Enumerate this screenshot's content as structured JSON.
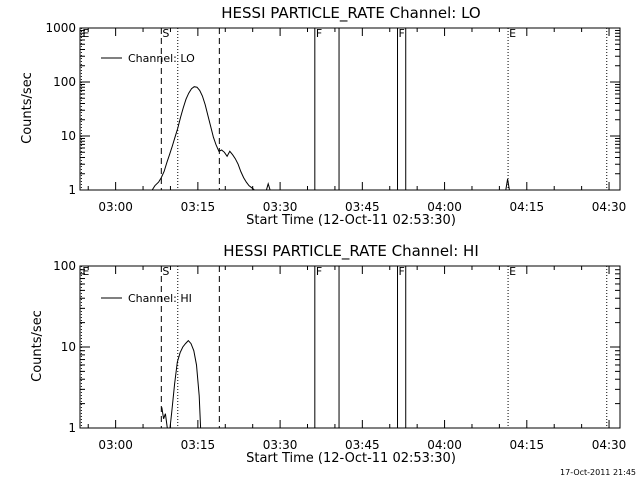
{
  "footer": {
    "timestamp": "17-Oct-2011 21:45"
  },
  "chart_data": [
    {
      "type": "line",
      "title": "HESSI PARTICLE_RATE Channel: LO",
      "xlabel": "Start Time (12-Oct-11 02:53:30)",
      "ylabel": "Counts/sec",
      "yscale": "log",
      "xlim": [
        "02:53:30",
        "04:32:00"
      ],
      "ylim": [
        1,
        1000
      ],
      "x_ticks": [
        "03:00",
        "03:15",
        "03:30",
        "03:45",
        "04:00",
        "04:15",
        "04:30"
      ],
      "y_ticks": [
        "1",
        "10",
        "100",
        "1000"
      ],
      "legend": {
        "position": "top-left",
        "entries": [
          "Channel: LO"
        ]
      },
      "markers": [
        {
          "label": "E",
          "time": "02:53:45",
          "style": "dotted"
        },
        {
          "label": "S",
          "time": "03:08:20",
          "style": "dashed"
        },
        {
          "label": "",
          "time": "03:11:20",
          "style": "dotted"
        },
        {
          "label": "",
          "time": "03:18:55",
          "style": "dashed"
        },
        {
          "label": "F",
          "time": "03:36:20",
          "style": "solid"
        },
        {
          "label": "",
          "time": "03:40:45",
          "style": "solid"
        },
        {
          "label": "F",
          "time": "03:51:25",
          "style": "solid"
        },
        {
          "label": "",
          "time": "03:52:55",
          "style": "solid"
        },
        {
          "label": "E",
          "time": "04:11:35",
          "style": "dotted"
        },
        {
          "label": "",
          "time": "04:29:35",
          "style": "dotted"
        }
      ],
      "series": [
        {
          "name": "Channel: LO",
          "segments": [
            {
              "x": [
                "03:06:40",
                "03:07:10",
                "03:07:50",
                "03:08:20",
                "03:08:50",
                "03:09:20",
                "03:09:50",
                "03:10:20",
                "03:10:50",
                "03:11:20",
                "03:11:50",
                "03:12:20",
                "03:12:50",
                "03:13:20",
                "03:13:50",
                "03:14:20",
                "03:14:50",
                "03:15:20",
                "03:15:50",
                "03:16:20",
                "03:16:50",
                "03:17:20",
                "03:17:50",
                "03:18:20",
                "03:18:50",
                "03:19:20",
                "03:19:50",
                "03:20:20",
                "03:20:50",
                "03:21:20",
                "03:21:50",
                "03:22:20",
                "03:22:50",
                "03:23:20",
                "03:23:50",
                "03:24:20",
                "03:24:50",
                "03:25:20"
              ],
              "y": [
                1,
                1.2,
                1.4,
                1.7,
                2.2,
                3.2,
                4.5,
                6.5,
                9.5,
                14,
                22,
                33,
                48,
                62,
                75,
                82,
                80,
                70,
                55,
                38,
                24,
                15,
                9.5,
                6.8,
                5.2,
                5.5,
                5.0,
                4.2,
                5.2,
                4.5,
                3.8,
                3.0,
                2.2,
                1.7,
                1.4,
                1.2,
                1.1,
                1
              ]
            },
            {
              "x": [
                "03:27:30",
                "03:27:50",
                "03:28:10"
              ],
              "y": [
                1,
                1.3,
                1
              ]
            },
            {
              "x": [
                "04:11:10",
                "04:11:30",
                "04:11:50"
              ],
              "y": [
                1,
                1.6,
                1
              ]
            }
          ]
        }
      ]
    },
    {
      "type": "line",
      "title": "HESSI PARTICLE_RATE Channel: HI",
      "xlabel": "Start Time (12-Oct-11 02:53:30)",
      "ylabel": "Counts/sec",
      "yscale": "log",
      "xlim": [
        "02:53:30",
        "04:32:00"
      ],
      "ylim": [
        1,
        100
      ],
      "x_ticks": [
        "03:00",
        "03:15",
        "03:30",
        "03:45",
        "04:00",
        "04:15",
        "04:30"
      ],
      "y_ticks": [
        "1",
        "10",
        "100"
      ],
      "legend": {
        "position": "top-left",
        "entries": [
          "Channel: HI"
        ]
      },
      "markers": [
        {
          "label": "E",
          "time": "02:53:45",
          "style": "dotted"
        },
        {
          "label": "S",
          "time": "03:08:20",
          "style": "dashed"
        },
        {
          "label": "",
          "time": "03:11:20",
          "style": "dotted"
        },
        {
          "label": "",
          "time": "03:18:55",
          "style": "dashed"
        },
        {
          "label": "F",
          "time": "03:36:20",
          "style": "solid"
        },
        {
          "label": "",
          "time": "03:40:45",
          "style": "solid"
        },
        {
          "label": "F",
          "time": "03:51:25",
          "style": "solid"
        },
        {
          "label": "",
          "time": "03:52:55",
          "style": "solid"
        },
        {
          "label": "E",
          "time": "04:11:35",
          "style": "dotted"
        },
        {
          "label": "",
          "time": "04:29:35",
          "style": "dotted"
        }
      ],
      "series": [
        {
          "name": "Channel: HI",
          "segments": [
            {
              "x": [
                "03:08:25",
                "03:08:45",
                "03:09:05",
                "03:09:25"
              ],
              "y": [
                1.8,
                1.3,
                1.5,
                1
              ]
            },
            {
              "x": [
                "03:09:55",
                "03:10:15",
                "03:10:45",
                "03:11:15",
                "03:11:45",
                "03:12:15",
                "03:12:45",
                "03:13:15",
                "03:13:45",
                "03:14:15",
                "03:14:45",
                "03:15:15",
                "03:15:30"
              ],
              "y": [
                1,
                1.6,
                3.5,
                6.5,
                8.5,
                10,
                11,
                12,
                11,
                9,
                6,
                2.5,
                1
              ]
            }
          ]
        }
      ]
    }
  ]
}
